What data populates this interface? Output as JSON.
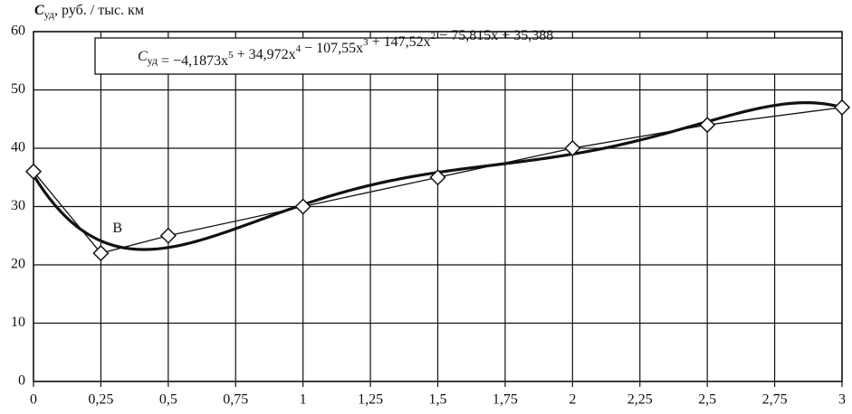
{
  "chart_data": {
    "type": "line",
    "y_label": {
      "symbol": "C",
      "sub": "уд",
      "text": ", руб. / тыс. км"
    },
    "annotation": "B",
    "x": [
      0,
      0.25,
      0.5,
      1,
      1.5,
      2,
      2.5,
      3
    ],
    "series": [
      {
        "color": "#111111",
        "values": [
          36,
          22,
          25,
          30,
          35,
          40,
          44,
          47
        ]
      }
    ],
    "trendline": {
      "equation": [
        {
          "text": "C"
        },
        {
          "sub": "уд"
        },
        {
          "text": " = −4,1873x"
        },
        {
          "sup": "5"
        },
        {
          "text": " + 34,972x"
        },
        {
          "sup": "4"
        },
        {
          "text": " − 107,55x"
        },
        {
          "sup": "3"
        },
        {
          "text": " + 147,52x"
        },
        {
          "sup": "2"
        },
        {
          "text": " − 75,815x + 35,388"
        }
      ],
      "coefficients": [
        -4.1873,
        34.972,
        -107.55,
        147.52,
        -75.815,
        35.388
      ]
    },
    "xlim": [
      0,
      3
    ],
    "ylim": [
      0,
      60
    ],
    "xticks": [
      0,
      {
        "value": 0.25,
        "label": "0,25"
      },
      {
        "value": 0.5,
        "label": "0,5"
      },
      {
        "value": 0.75,
        "label": "0,75"
      },
      1,
      {
        "value": 1.25,
        "label": "1,25"
      },
      {
        "value": 1.5,
        "label": "1,5"
      },
      {
        "value": 1.75,
        "label": "1,75"
      },
      2,
      {
        "value": 2.25,
        "label": "2,25"
      },
      {
        "value": 2.5,
        "label": "2,5"
      },
      {
        "value": 2.75,
        "label": "2,75"
      },
      3
    ],
    "yticks": [
      0,
      10,
      20,
      30,
      40,
      50,
      60
    ],
    "grid": true
  }
}
